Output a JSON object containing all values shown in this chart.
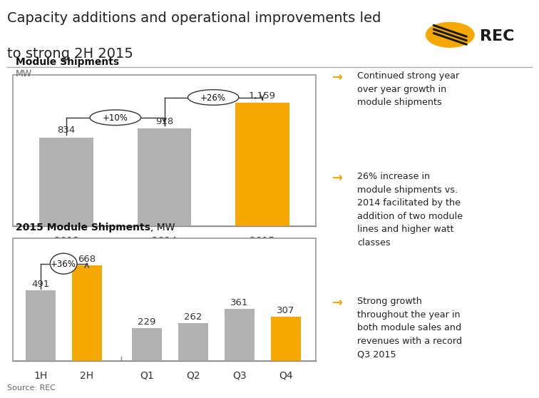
{
  "title_line1": "Capacity additions and operational improvements led",
  "title_line2": "to strong 2H 2015",
  "title_fontsize": 14,
  "background_color": "#ffffff",
  "top_chart": {
    "title": "Module Shipments",
    "subtitle": "MW",
    "categories": [
      "2013",
      "2014",
      "2015"
    ],
    "values": [
      834,
      918,
      1159
    ],
    "colors": [
      "#b2b2b2",
      "#b2b2b2",
      "#f5a800"
    ],
    "labels": [
      "834",
      "918",
      "1,159"
    ],
    "ann1_text": "+10%",
    "ann2_text": "+26%"
  },
  "bottom_chart": {
    "title_bold": "2015 Module Shipments",
    "title_normal": ", MW",
    "categories": [
      "1H",
      "2H",
      "Q1",
      "Q2",
      "Q3",
      "Q4"
    ],
    "values": [
      491,
      668,
      229,
      262,
      361,
      307
    ],
    "colors": [
      "#b2b2b2",
      "#f5a800",
      "#b2b2b2",
      "#b2b2b2",
      "#b2b2b2",
      "#f5a800"
    ],
    "labels": [
      "491",
      "668",
      "229",
      "262",
      "361",
      "307"
    ],
    "ann_text": "+36%"
  },
  "bullet_points": [
    "Continued strong year\nover year growth in\nmodule shipments",
    "26% increase in\nmodule shipments vs.\n2014 facilitated by the\naddition of two module\nlines and higher watt\nclasses",
    "Strong growth\nthroughout the year in\nboth module sales and\nrevenues with a record\nQ3 2015"
  ],
  "source": "Source: REC",
  "arrow_color": "#f5a800",
  "text_color": "#222222",
  "gray_color": "#b2b2b2",
  "border_color": "#999999"
}
